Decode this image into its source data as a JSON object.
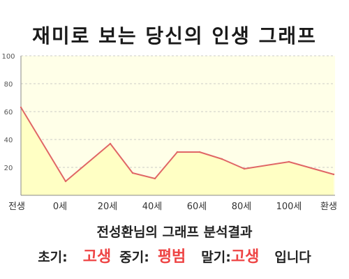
{
  "chart_data": {
    "type": "area",
    "title": "재미로 보는 당신의 인생 그래프",
    "x_categories": [
      "전생",
      "0세",
      "20세",
      "40세",
      "60세",
      "80세",
      "100세",
      "환생"
    ],
    "points": [
      {
        "x": "전생",
        "y": 63
      },
      {
        "x": "0세",
        "y": 10
      },
      {
        "x": "20세",
        "y": 37
      },
      {
        "x": "30세",
        "y": 16
      },
      {
        "x": "40세",
        "y": 12
      },
      {
        "x": "50세",
        "y": 31
      },
      {
        "x": "60세",
        "y": 31
      },
      {
        "x": "70세",
        "y": 26
      },
      {
        "x": "80세",
        "y": 19
      },
      {
        "x": "100세",
        "y": 24
      },
      {
        "x": "환생",
        "y": 15
      }
    ],
    "y_ticks": [
      20,
      40,
      60,
      80,
      100
    ],
    "ylim": [
      0,
      100
    ],
    "grid": true,
    "colors": {
      "line": "#e06666",
      "fill": "#ffffc4",
      "plot_bg": "#ffffe8",
      "grid": "#bbbbbb"
    }
  },
  "summary": {
    "title": "전성환님의 그래프 분석결과",
    "early_label": "초기:",
    "early_value": "고생",
    "middle_label": "중기:",
    "middle_value": "평범",
    "late_label": "말기:",
    "late_value": "고생",
    "ending": "입니다"
  }
}
